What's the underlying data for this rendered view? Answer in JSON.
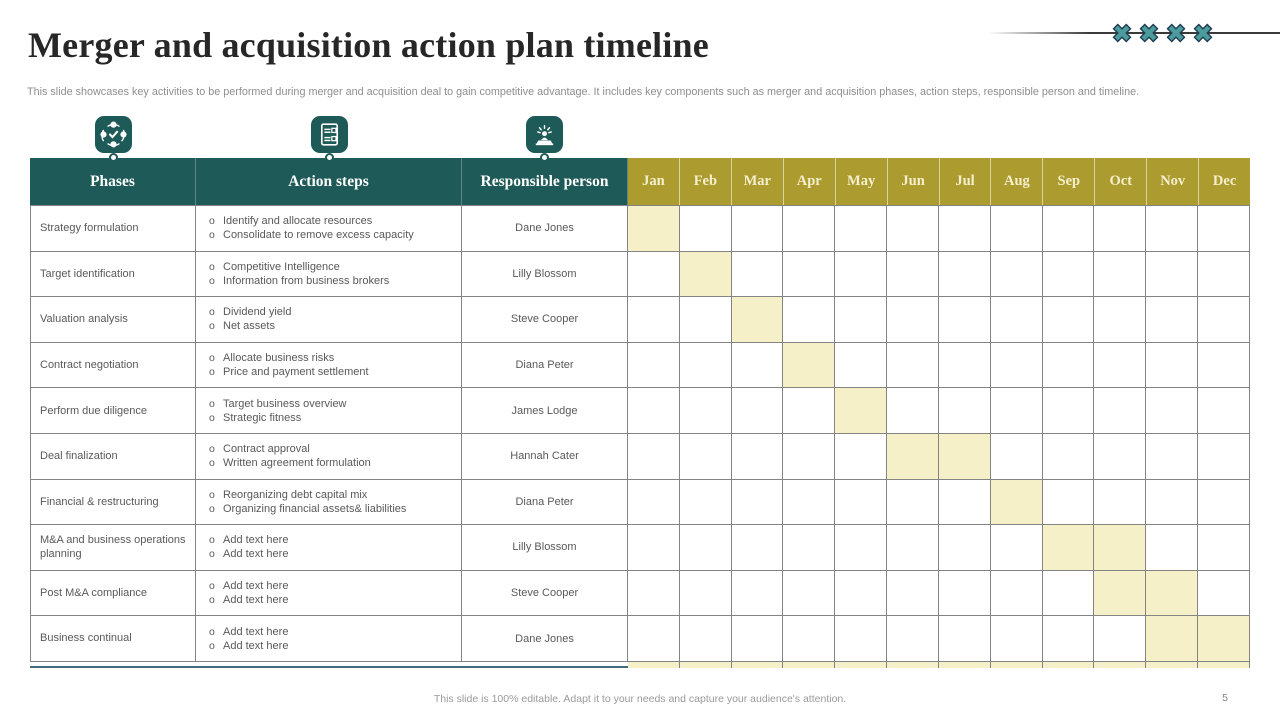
{
  "slide": {
    "title": "Merger and acquisition action plan timeline",
    "subtitle": "This slide showcases key activities to be performed during merger and acquisition deal to gain competitive advantage. It includes key components such as merger and acquisition phases, action steps, responsible person and timeline.",
    "footer": "This slide is 100% editable. Adapt it to your needs and capture your audience's attention.",
    "page_number": "5"
  },
  "colors": {
    "teal": "#1E5A57",
    "olive": "#AC9B2F",
    "highlight": "#F5F0C8",
    "month_text": "#F5EFCD",
    "body_text": "#595959",
    "grid_border": "#848484",
    "x_icon_fill": "#4C9C9E"
  },
  "icons": [
    {
      "name": "process-cycle-icon"
    },
    {
      "name": "checklist-icon"
    },
    {
      "name": "presenter-icon"
    }
  ],
  "decor": {
    "x_icon_count": 4
  },
  "table": {
    "headers": {
      "phases": "Phases",
      "action_steps": "Action steps",
      "responsible_person": "Responsible person"
    },
    "months": [
      "Jan",
      "Feb",
      "Mar",
      "Apr",
      "May",
      "Jun",
      "Jul",
      "Aug",
      "Sep",
      "Oct",
      "Nov",
      "Dec"
    ],
    "bullet": "o",
    "rows": [
      {
        "phase": "Strategy formulation",
        "steps": [
          "Identify and allocate resources",
          "Consolidate to remove excess capacity"
        ],
        "person": "Dane Jones",
        "active_months": [
          0
        ]
      },
      {
        "phase": "Target identification",
        "steps": [
          "Competitive Intelligence",
          "Information from business brokers"
        ],
        "person": "Lilly Blossom",
        "active_months": [
          1
        ]
      },
      {
        "phase": "Valuation analysis",
        "steps": [
          "Dividend yield",
          "Net assets"
        ],
        "person": "Steve Cooper",
        "active_months": [
          2
        ]
      },
      {
        "phase": "Contract negotiation",
        "steps": [
          "Allocate business risks",
          "Price and payment settlement"
        ],
        "person": "Diana Peter",
        "active_months": [
          3
        ]
      },
      {
        "phase": "Perform due diligence",
        "steps": [
          "Target business overview",
          "Strategic fitness"
        ],
        "person": "James Lodge",
        "active_months": [
          4
        ]
      },
      {
        "phase": "Deal finalization",
        "steps": [
          "Contract approval",
          "Written agreement formulation"
        ],
        "person": "Hannah Cater",
        "active_months": [
          5,
          6
        ]
      },
      {
        "phase": "Financial & restructuring",
        "steps": [
          "Reorganizing debt capital mix",
          "Organizing financial assets& liabilities"
        ],
        "person": "Diana Peter",
        "active_months": [
          7
        ]
      },
      {
        "phase": "M&A and business operations planning",
        "steps": [
          "Add text here",
          "Add text here"
        ],
        "person": "Lilly Blossom",
        "active_months": [
          8,
          9
        ]
      },
      {
        "phase": "Post M&A compliance",
        "steps": [
          "Add text here",
          "Add text here"
        ],
        "person": "Steve Cooper",
        "active_months": [
          9,
          10
        ]
      },
      {
        "phase": "Business continual",
        "steps": [
          "Add text here",
          "Add text here"
        ],
        "person": "Dane Jones",
        "active_months": [
          10,
          11
        ]
      }
    ]
  }
}
